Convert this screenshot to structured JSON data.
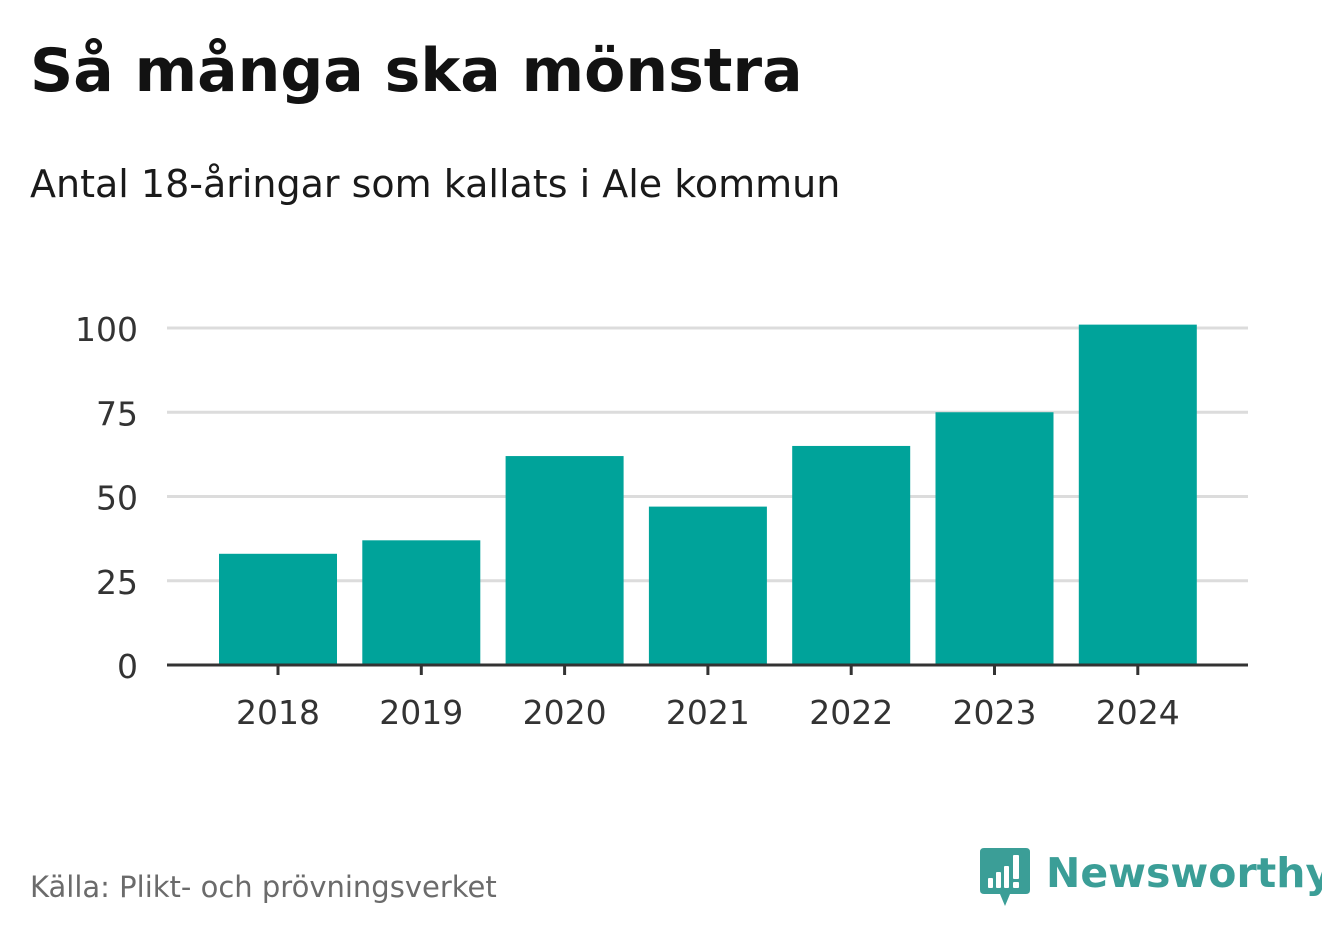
{
  "header": {
    "title": "Så många ska mönstra",
    "subtitle": "Antal 18-åringar som kallats i Ale kommun"
  },
  "footer": {
    "source": "Källa: Plikt- och prövningsverket",
    "brand": "Newsworthy",
    "brand_icon": "newsworthy-logo-icon"
  },
  "colors": {
    "bar": "#00A39A",
    "grid": "#dcdcdc",
    "axis": "#333333",
    "tick_label": "#333333",
    "brand": "#3b9e97"
  },
  "chart_data": {
    "type": "bar",
    "title": "Så många ska mönstra",
    "subtitle": "Antal 18-åringar som kallats i Ale kommun",
    "categories": [
      "2018",
      "2019",
      "2020",
      "2021",
      "2022",
      "2023",
      "2024"
    ],
    "values": [
      33,
      37,
      62,
      47,
      65,
      75,
      101
    ],
    "xlabel": "",
    "ylabel": "",
    "ylim": [
      0,
      100
    ],
    "yticks": [
      "0",
      "25",
      "50",
      "75",
      "100"
    ],
    "grid": true,
    "legend": "none"
  }
}
